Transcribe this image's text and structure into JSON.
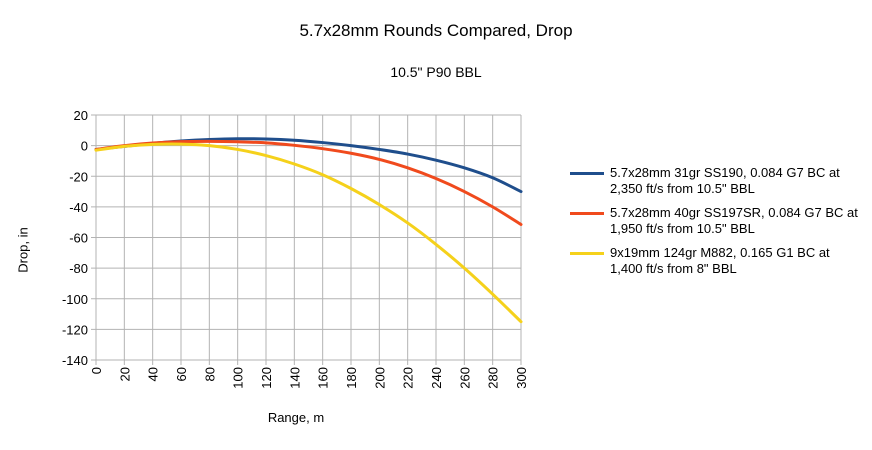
{
  "chart_data": {
    "type": "line",
    "title": "5.7x28mm Rounds Compared, Drop",
    "subtitle": "10.5\" P90 BBL",
    "xlabel": "Range, m",
    "ylabel": "Drop, in",
    "xlim": [
      0,
      300
    ],
    "ylim": [
      -140,
      20
    ],
    "x_ticks": [
      "0",
      "20",
      "40",
      "60",
      "80",
      "100",
      "120",
      "140",
      "160",
      "180",
      "200",
      "220",
      "240",
      "260",
      "280",
      "300"
    ],
    "y_ticks": [
      "20",
      "0",
      "-20",
      "-40",
      "-60",
      "-80",
      "-100",
      "-120",
      "-140"
    ],
    "grid": true,
    "legend_position": "right",
    "x": [
      0,
      20,
      40,
      60,
      80,
      100,
      120,
      140,
      160,
      180,
      200,
      220,
      240,
      260,
      280,
      300
    ],
    "series": [
      {
        "name": "5.7x28mm 31gr SS190, 0.084 G7 BC at 2,350 ft/s from 10.5\" BBL",
        "color": "#1f4e8c",
        "values": [
          -2.5,
          -0.5,
          1.5,
          3.0,
          4.0,
          4.5,
          4.3,
          3.5,
          2.0,
          0.0,
          -2.5,
          -5.5,
          -9.5,
          -14.5,
          -21.0,
          -30.0
        ]
      },
      {
        "name": "5.7x28mm 40gr SS197SR, 0.084 G7 BC at 1,950 ft/s from 10.5\" BBL",
        "color": "#f04a1d",
        "values": [
          -2.5,
          0.0,
          1.7,
          2.6,
          2.8,
          2.5,
          1.8,
          0.2,
          -2.0,
          -5.0,
          -9.0,
          -14.5,
          -21.5,
          -30.0,
          -40.0,
          -51.5
        ]
      },
      {
        "name": "9x19mm 124gr M882, 0.165 G1 BC at 1,400 ft/s from 8\" BBL",
        "color": "#f5d11b",
        "values": [
          -3.0,
          -0.5,
          0.8,
          1.0,
          0.0,
          -2.5,
          -6.5,
          -12.0,
          -19.0,
          -28.0,
          -38.5,
          -50.5,
          -64.5,
          -80.0,
          -97.0,
          -115.0
        ]
      }
    ]
  }
}
